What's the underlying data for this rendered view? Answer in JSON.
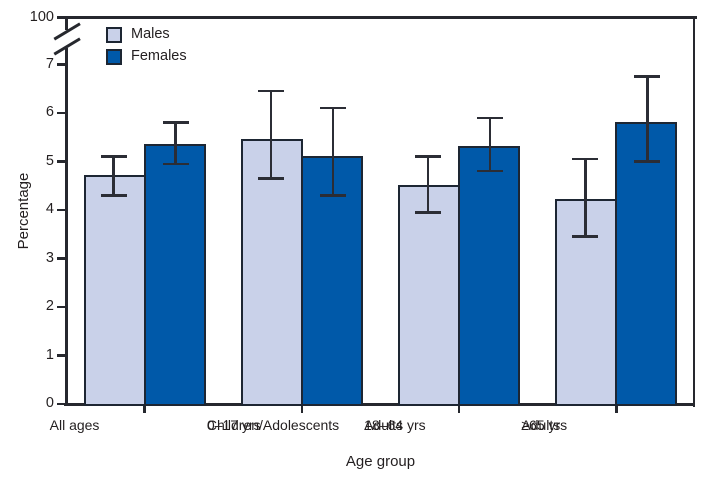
{
  "chart_data": {
    "type": "bar",
    "title": "",
    "xlabel": "Age group",
    "ylabel": "Percentage",
    "ylim": [
      0,
      7
    ],
    "y_ticks": [
      0,
      1,
      2,
      3,
      4,
      5,
      6,
      7
    ],
    "y_axis_break_label": "100",
    "grid": false,
    "legend_position": "top-left-inside",
    "categories": [
      [
        "All ages"
      ],
      [
        "Children/Adolescents",
        "0–17 yrs"
      ],
      [
        "Adults",
        "18–64 yrs"
      ],
      [
        "Adults",
        "≥65 yrs"
      ]
    ],
    "series": [
      {
        "name": "Males",
        "color": "#c9d1e9",
        "values": [
          4.7,
          5.45,
          4.5,
          4.2
        ],
        "ci_low": [
          4.3,
          4.65,
          3.95,
          3.45
        ],
        "ci_high": [
          5.1,
          6.45,
          5.1,
          5.05
        ]
      },
      {
        "name": "Females",
        "color": "#0059a9",
        "values": [
          5.35,
          5.1,
          5.3,
          5.8
        ],
        "ci_low": [
          4.95,
          4.3,
          4.8,
          5.0
        ],
        "ci_high": [
          5.8,
          6.1,
          5.9,
          6.75
        ]
      }
    ],
    "error_bars": true,
    "colors": {
      "bar_border": "#1d2633",
      "axis": "#26282e",
      "error_bar": "#2b2d35",
      "text": "#231f20"
    }
  }
}
